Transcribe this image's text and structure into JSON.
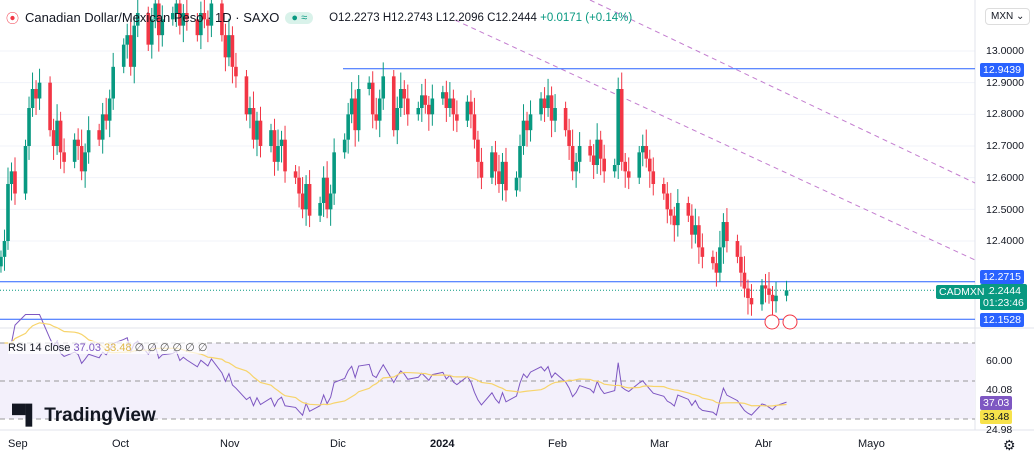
{
  "header": {
    "symbol_title": "Canadian Dollar/Mexican Peso · 1D · SAXO",
    "open": "O12.2273",
    "high": "H12.2743",
    "low": "L12.2096",
    "close": "C12.2444",
    "change": "+0.0171 (+0.14%)",
    "pill": "≈"
  },
  "currency_select": "MXN",
  "price_axis": {
    "ticks": [
      "13.0000",
      "12.9000",
      "12.8000",
      "12.7000",
      "12.6000",
      "12.5000",
      "12.4000"
    ],
    "tags": {
      "upper_line": "12.9439",
      "mid_line": "12.2715",
      "lower_line": "12.1528",
      "symbol": "CADMXN",
      "last_price": "12.2444",
      "countdown": "01:23:46"
    }
  },
  "rsi": {
    "label": "RSI 14 close",
    "value": "37.03",
    "ma_value": "33.48",
    "ticks": [
      "60.00",
      "40.08",
      "24.98"
    ],
    "colors": {
      "rsi": "#7e57c2",
      "ma": "#f7d46b"
    }
  },
  "time_axis": [
    "Sep",
    "Oct",
    "Nov",
    "Dic",
    "2024",
    "Feb",
    "Mar",
    "Abr",
    "Mayo"
  ],
  "logo": "TradingView",
  "colors": {
    "up": "#089981",
    "down": "#f23645",
    "hline": "#2962ff",
    "trend": "#9c27b0"
  },
  "chart_data": {
    "type": "candlestick",
    "title": "Canadian Dollar/Mexican Peso",
    "interval": "1D",
    "first_date": "2023-08-28",
    "ylim": [
      12.1,
      13.1
    ],
    "horizontal_lines": [
      12.9439,
      12.2715,
      12.1528
    ],
    "last": {
      "open": 12.2273,
      "high": 12.2743,
      "low": 12.2096,
      "close": 12.2444
    },
    "closes": [
      12.35,
      12.4,
      12.58,
      12.62,
      12.55,
      12.7,
      12.82,
      12.88,
      12.85,
      12.9,
      12.75,
      12.7,
      12.78,
      12.68,
      12.65,
      12.72,
      12.7,
      12.62,
      12.68,
      12.75,
      12.72,
      12.8,
      12.78,
      12.85,
      12.95,
      13.02,
      13.05,
      12.95,
      13.08,
      13.12,
      13.02,
      13.1,
      13.15,
      13.05,
      13.1,
      13.12,
      13.15,
      13.08,
      13.12,
      13.1,
      13.05,
      13.12,
      13.1,
      13.08,
      13.15,
      13.05,
      12.98,
      13.05,
      12.95,
      12.92,
      12.8,
      12.82,
      12.72,
      12.78,
      12.7,
      12.75,
      12.65,
      12.7,
      12.72,
      12.62,
      12.6,
      12.55,
      12.5,
      12.58,
      12.48,
      12.52,
      12.6,
      12.5,
      12.55,
      12.68,
      12.72,
      12.8,
      12.85,
      12.75,
      12.88,
      12.9,
      12.8,
      12.78,
      12.85,
      12.92,
      12.75,
      12.82,
      12.88,
      12.85,
      12.8,
      12.82,
      12.86,
      12.83,
      12.8,
      12.85,
      12.87,
      12.82,
      12.85,
      12.8,
      12.78,
      12.84,
      12.8,
      12.72,
      12.65,
      12.6,
      12.68,
      12.62,
      12.58,
      12.65,
      12.56,
      12.6,
      12.7,
      12.78,
      12.75,
      12.8,
      12.85,
      12.82,
      12.86,
      12.78,
      12.82,
      12.75,
      12.7,
      12.62,
      12.65,
      12.7,
      12.67,
      12.64,
      12.72,
      12.66,
      12.62,
      12.64,
      12.88,
      12.65,
      12.62,
      12.6,
      12.68,
      12.7,
      12.66,
      12.62,
      12.58,
      12.55,
      12.5,
      12.48,
      12.45,
      12.52,
      12.48,
      12.42,
      12.45,
      12.38,
      12.35,
      12.33,
      12.3,
      12.38,
      12.46,
      12.4,
      12.35,
      12.3,
      12.25,
      12.22,
      12.2,
      12.26,
      12.25,
      12.23,
      12.21,
      12.2273,
      12.2444
    ]
  }
}
